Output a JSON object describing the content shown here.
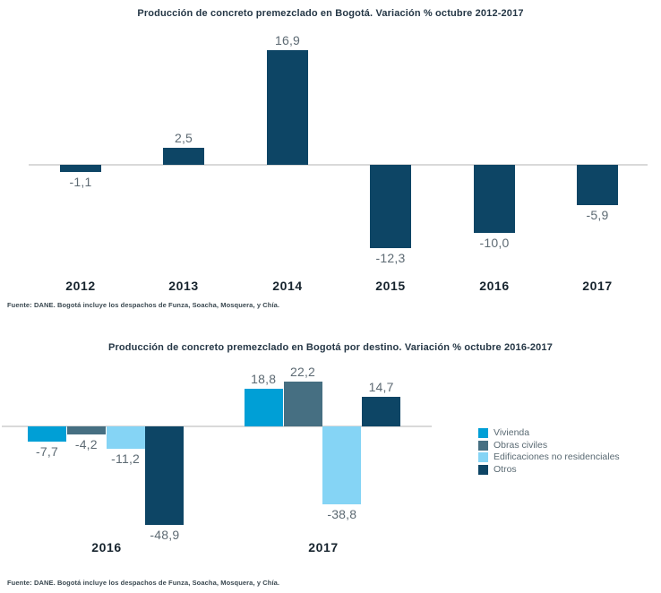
{
  "page": {
    "background": "#ffffff"
  },
  "chart_data": [
    {
      "type": "bar",
      "title": "Producción de concreto premezclado en Bogotá. Variación % octubre 2012-2017",
      "categories": [
        "2012",
        "2013",
        "2014",
        "2015",
        "2016",
        "2017"
      ],
      "values": [
        -1.1,
        2.5,
        16.9,
        -12.3,
        -10.0,
        -5.9
      ],
      "value_labels": [
        "-1,1",
        "2,5",
        "16,9",
        "-12,3",
        "-10,0",
        "-5,9"
      ],
      "bar_color": "#0d4565",
      "axis_line_color": "#d9d9d9",
      "value_label_color": "#5d6a73",
      "xlabel": "",
      "ylabel": "",
      "ylim": [
        -15,
        20
      ],
      "grid": false,
      "legend": null,
      "source": "Fuente: DANE. Bogotá incluye los despachos de Funza, Soacha, Mosquera, y Chía."
    },
    {
      "type": "bar",
      "title": "Producción de concreto premezclado en Bogotá por destino. Variación % octubre 2016-2017",
      "categories": [
        "2016",
        "2017"
      ],
      "series": [
        {
          "name": "Vivienda",
          "color": "#009fd6",
          "values": [
            -7.7,
            18.8
          ],
          "value_labels": [
            "-7,7",
            "18,8"
          ]
        },
        {
          "name": "Obras civiles",
          "color": "#466f82",
          "values": [
            -4.2,
            22.2
          ],
          "value_labels": [
            "-4,2",
            "22,2"
          ]
        },
        {
          "name": "Edificaciones no residenciales",
          "color": "#85d4f5",
          "values": [
            -11.2,
            -38.8
          ],
          "value_labels": [
            "-11,2",
            "-38,8"
          ]
        },
        {
          "name": "Otros",
          "color": "#0d4565",
          "values": [
            -48.9,
            14.7
          ],
          "value_labels": [
            "-48,9",
            "14,7"
          ]
        }
      ],
      "axis_line_color": "#d9d9d9",
      "value_label_color": "#5d6a73",
      "xlabel": "",
      "ylabel": "",
      "ylim": [
        -55,
        25
      ],
      "grid": false,
      "legend_position": "right",
      "source": "Fuente: DANE. Bogotá incluye los despachos de Funza, Soacha, Mosquera, y Chía."
    }
  ]
}
